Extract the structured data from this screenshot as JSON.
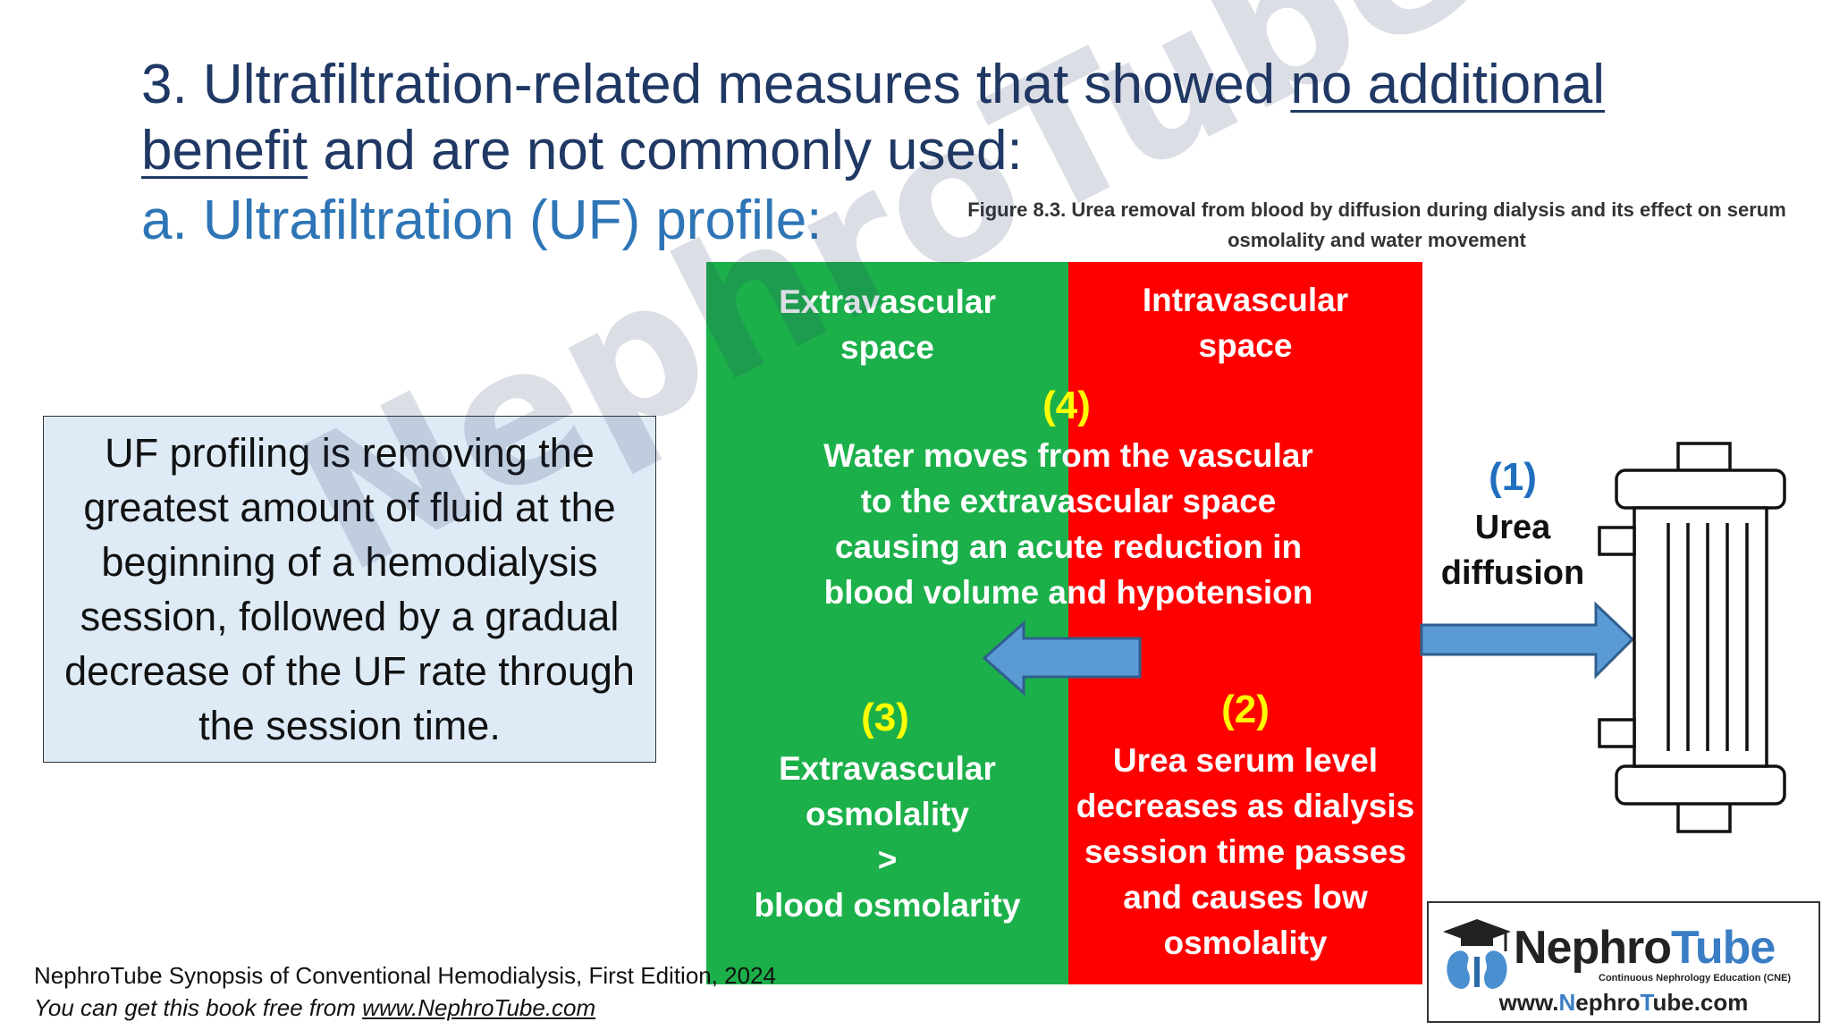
{
  "slide": {
    "title_part1": "3. Ultrafiltration-related measures that showed ",
    "title_underlined_1": "no additional",
    "title_underlined_2": "benefit",
    "title_part2": " and are not commonly used:",
    "subtitle": "a. Ultrafiltration (UF) profile:",
    "definition": "UF profiling is removing the greatest amount of fluid at the beginning of a hemodialysis session, followed by a gradual decrease of the UF rate through the session time."
  },
  "figure": {
    "caption_line1": "Figure 8.3. Urea removal from blood by diffusion during dialysis and its effect on serum",
    "caption_line2": "osmolality and water movement",
    "extravascular_label": "Extravascular space",
    "intravascular_label": "Intravascular space",
    "step4_num": "(4)",
    "step4_text": "Water moves from the vascular to the extravascular space causing an acute reduction in blood volume and hypotension",
    "step3_num": "(3)",
    "step3_line1": "Extravascular",
    "step3_line2": "osmolality",
    "step3_line3": ">",
    "step3_line4": "blood osmolarity",
    "step2_num": "(2)",
    "step2_text": "Urea serum level decreases as dialysis session time passes and causes low osmolality",
    "step1_num": "(1)",
    "step1_text": "Urea diffusion",
    "colors": {
      "extravascular": "#1cb04a",
      "intravascular": "#ff0000",
      "arrow": "#5b9bd5",
      "highlight_number": "#ffff00"
    }
  },
  "footer": {
    "line1": "NephroTube Synopsis of Conventional Hemodialysis, First Edition, 2024",
    "line2_prefix": "You can get this book free from ",
    "line2_link": "www.NephroTube.com"
  },
  "logo": {
    "name_part1": "Nephro",
    "name_part2": "Tube",
    "tagline": "Continuous Nephrology Education (CNE)",
    "url_part1": "www.",
    "url_part2": "N",
    "url_part3": "ephro",
    "url_part4": "T",
    "url_part5": "ube.com"
  },
  "watermark": "NephroTube.com"
}
